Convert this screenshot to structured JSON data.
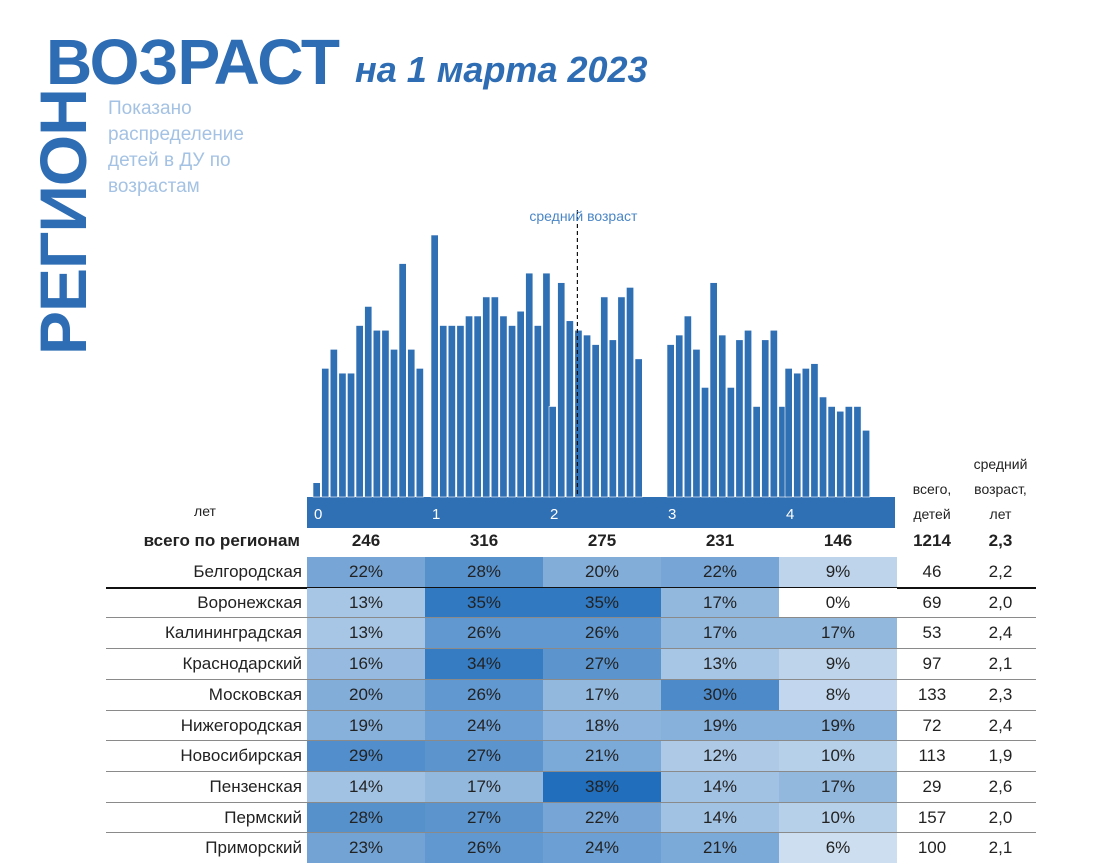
{
  "header": {
    "vertical_title": "РЕГИОН",
    "title": "ВОЗРАСТ",
    "subtitle": "на 1 марта 2023",
    "description": "Показано распределение детей в ДУ по возрастам"
  },
  "chart_data": {
    "type": "bar",
    "annotation": "средний возраст",
    "mean_age": 2.3,
    "x_axis_label": "лет",
    "x_ticks": [
      "0",
      "1",
      "2",
      "3",
      "4"
    ],
    "ylim": [
      0,
      58
    ],
    "colors": {
      "bar": "#2f6fb4",
      "axis_band": "#2f6fb4",
      "annotation": "#4a86c6"
    },
    "groups": [
      {
        "age": 0,
        "values": [
          3,
          27,
          31,
          26,
          26,
          36,
          40,
          35,
          35,
          31,
          49,
          31,
          27
        ]
      },
      {
        "age": 1,
        "values": [
          55,
          36,
          36,
          36,
          38,
          38,
          42,
          42,
          38,
          36,
          39,
          47,
          36,
          47
        ]
      },
      {
        "age": 2,
        "values": [
          19,
          45,
          37,
          35,
          34,
          32,
          42,
          33,
          42,
          44,
          29
        ]
      },
      {
        "age": 3,
        "values": [
          32,
          34,
          38,
          31,
          23,
          45,
          34,
          23,
          33,
          35,
          19,
          33,
          35,
          19
        ]
      },
      {
        "age": 4,
        "values": [
          27,
          26,
          27,
          28,
          21,
          19,
          18,
          19,
          19,
          14
        ]
      }
    ]
  },
  "table": {
    "headers": {
      "total_children": "всего,\nдетей",
      "mean_age": "средний\nвозраст,\nлет"
    },
    "total_row": {
      "label": "всего по регионам",
      "age_totals": [
        "246",
        "316",
        "275",
        "231",
        "146"
      ],
      "total": "1214",
      "mean": "2,3"
    },
    "rows": [
      {
        "region": "Белгородская",
        "shares": [
          "22%",
          "28%",
          "20%",
          "22%",
          "9%"
        ],
        "total": "46",
        "mean": "2,2"
      },
      {
        "region": "Воронежская",
        "shares": [
          "13%",
          "35%",
          "35%",
          "17%",
          "0%"
        ],
        "total": "69",
        "mean": "2,0"
      },
      {
        "region": "Калининградская",
        "shares": [
          "13%",
          "26%",
          "26%",
          "17%",
          "17%"
        ],
        "total": "53",
        "mean": "2,4"
      },
      {
        "region": "Краснодарский",
        "shares": [
          "16%",
          "34%",
          "27%",
          "13%",
          "9%"
        ],
        "total": "97",
        "mean": "2,1"
      },
      {
        "region": "Московская",
        "shares": [
          "20%",
          "26%",
          "17%",
          "30%",
          "8%"
        ],
        "total": "133",
        "mean": "2,3"
      },
      {
        "region": "Нижегородская",
        "shares": [
          "19%",
          "24%",
          "18%",
          "19%",
          "19%"
        ],
        "total": "72",
        "mean": "2,4"
      },
      {
        "region": "Новосибирская",
        "shares": [
          "29%",
          "27%",
          "21%",
          "12%",
          "10%"
        ],
        "total": "113",
        "mean": "1,9"
      },
      {
        "region": "Пензенская",
        "shares": [
          "14%",
          "17%",
          "38%",
          "14%",
          "17%"
        ],
        "total": "29",
        "mean": "2,6"
      },
      {
        "region": "Пермский",
        "shares": [
          "28%",
          "27%",
          "22%",
          "14%",
          "10%"
        ],
        "total": "157",
        "mean": "2,0"
      },
      {
        "region": "Приморский",
        "shares": [
          "23%",
          "26%",
          "24%",
          "21%",
          "6%"
        ],
        "total": "100",
        "mean": "2,1"
      }
    ]
  }
}
